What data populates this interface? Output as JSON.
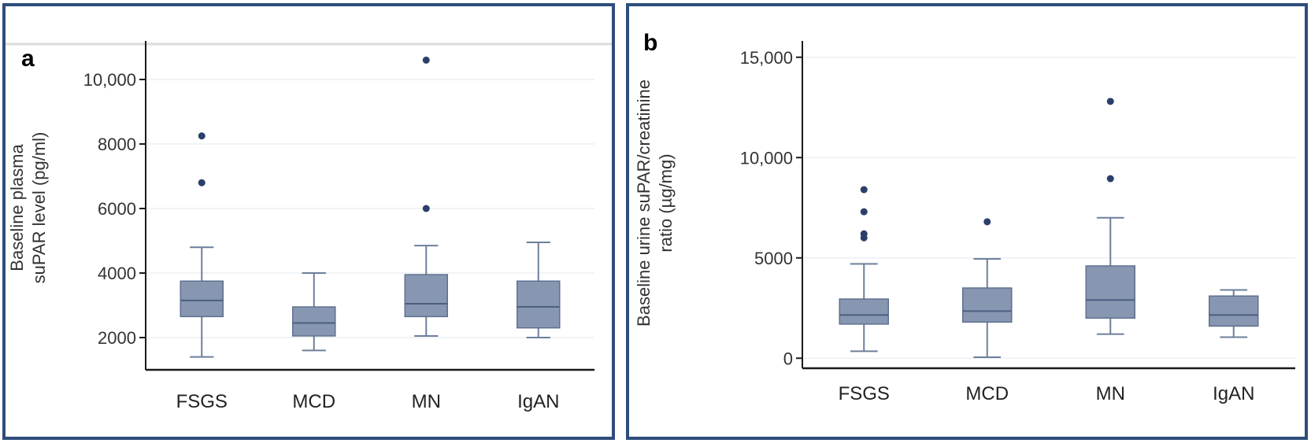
{
  "panels": {
    "a": {
      "tag": "a"
    },
    "b": {
      "tag": "b"
    }
  },
  "colors": {
    "box_fill": "#8797b1",
    "box_stroke": "#5e7090",
    "whisker": "#6d7f9b",
    "outlier": "#2b3f6a",
    "axis": "#1a1a1a",
    "grid": "#eceff2",
    "frame": "#2e4d7b"
  },
  "chart_data": [
    {
      "type": "box",
      "panel": "a",
      "title": "",
      "xlabel": "",
      "ylabel_lines": [
        "Baseline plasma",
        "suPAR level (pg/ml)"
      ],
      "categories": [
        "FSGS",
        "MCD",
        "MN",
        "IgAN"
      ],
      "ylim": [
        1000,
        11000
      ],
      "yticks": [
        2000,
        4000,
        6000,
        8000,
        10000
      ],
      "ytick_labels": [
        "2000",
        "4000",
        "6000",
        "8000",
        "10,000"
      ],
      "grid": true,
      "boxes": [
        {
          "category": "FSGS",
          "whisker_low": 1400,
          "q1": 2650,
          "median": 3150,
          "q3": 3750,
          "whisker_high": 4800,
          "outliers": [
            6800,
            8250
          ]
        },
        {
          "category": "MCD",
          "whisker_low": 1600,
          "q1": 2050,
          "median": 2450,
          "q3": 2950,
          "whisker_high": 4000,
          "outliers": []
        },
        {
          "category": "MN",
          "whisker_low": 2050,
          "q1": 2650,
          "median": 3050,
          "q3": 3950,
          "whisker_high": 4850,
          "outliers": [
            6000,
            10600
          ]
        },
        {
          "category": "IgAN",
          "whisker_low": 2000,
          "q1": 2300,
          "median": 2950,
          "q3": 3750,
          "whisker_high": 4950,
          "outliers": []
        }
      ]
    },
    {
      "type": "box",
      "panel": "b",
      "title": "",
      "xlabel": "",
      "ylabel_lines": [
        "Baseline urine suPAR/creatinine",
        "ratio (µg/mg)"
      ],
      "categories": [
        "FSGS",
        "MCD",
        "MN",
        "IgAN"
      ],
      "ylim": [
        -500,
        15500
      ],
      "yticks": [
        0,
        5000,
        10000,
        15000
      ],
      "ytick_labels": [
        "0",
        "5000",
        "10,000",
        "15,000"
      ],
      "grid": true,
      "boxes": [
        {
          "category": "FSGS",
          "whisker_low": 350,
          "q1": 1700,
          "median": 2150,
          "q3": 2950,
          "whisker_high": 4700,
          "outliers": [
            6000,
            6200,
            7300,
            8400
          ]
        },
        {
          "category": "MCD",
          "whisker_low": 50,
          "q1": 1800,
          "median": 2350,
          "q3": 3500,
          "whisker_high": 4950,
          "outliers": [
            6800
          ]
        },
        {
          "category": "MN",
          "whisker_low": 1200,
          "q1": 2000,
          "median": 2900,
          "q3": 4600,
          "whisker_high": 7000,
          "outliers": [
            8950,
            12800
          ]
        },
        {
          "category": "IgAN",
          "whisker_low": 1050,
          "q1": 1600,
          "median": 2150,
          "q3": 3100,
          "whisker_high": 3400,
          "outliers": []
        }
      ]
    }
  ]
}
